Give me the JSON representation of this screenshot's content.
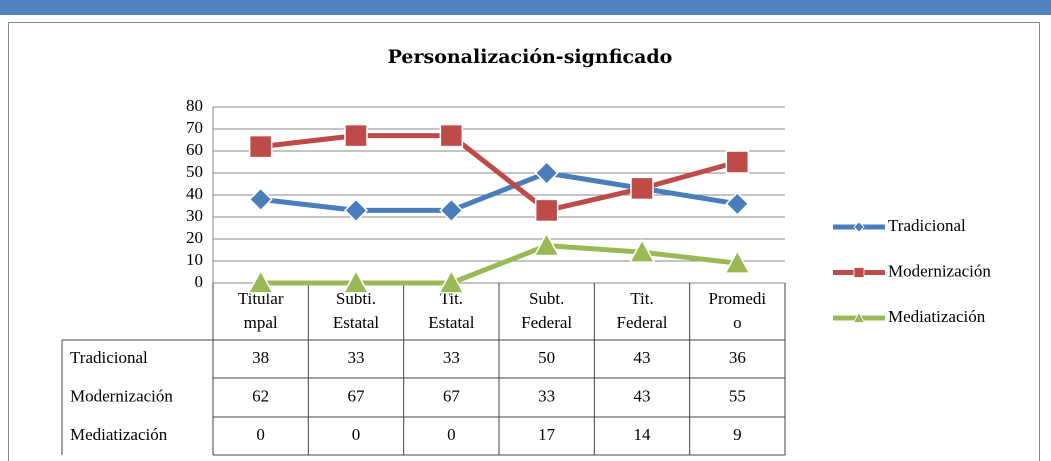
{
  "chart_data": {
    "type": "line",
    "title": "Personalización-signficado",
    "categories": [
      "Titular\nmpal",
      "Subti.\nEstatal",
      "Tit.\nEstatal",
      "Subt.\nFederal",
      "Tit.\nFederal",
      "Promedi\no"
    ],
    "series": [
      {
        "name": "Tradicional",
        "color": "#4a7ebb",
        "marker": "diamond",
        "values": [
          38,
          33,
          33,
          50,
          43,
          36
        ]
      },
      {
        "name": "Modernización",
        "color": "#be4b48",
        "marker": "square",
        "values": [
          62,
          67,
          67,
          33,
          43,
          55
        ]
      },
      {
        "name": "Mediatización",
        "color": "#98b954",
        "marker": "triangle",
        "values": [
          0,
          0,
          0,
          17,
          14,
          9
        ]
      }
    ],
    "ylim": [
      0,
      80
    ],
    "yticks": [
      0,
      10,
      20,
      30,
      40,
      50,
      60,
      70,
      80
    ],
    "grid": true,
    "legend": "right",
    "data_table": true
  }
}
